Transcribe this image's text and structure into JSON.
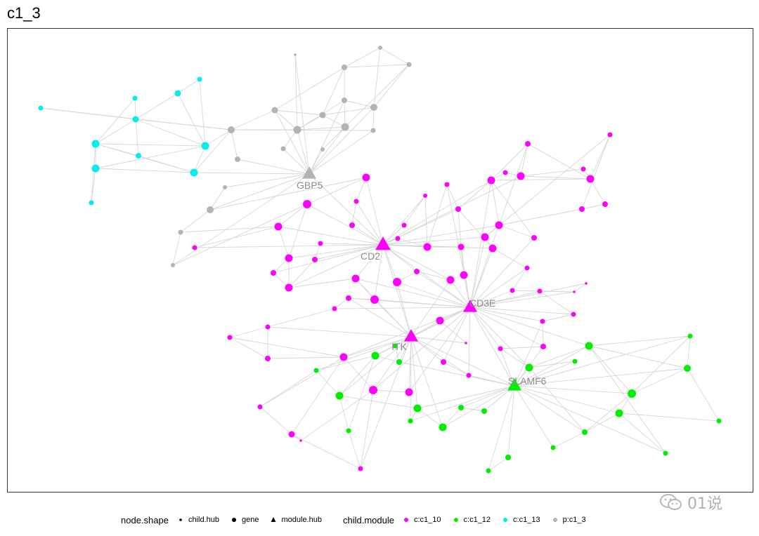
{
  "title": "c1_3",
  "chart_data": {
    "type": "network",
    "title": "c1_3",
    "legend": {
      "shape_title": "node.shape",
      "shape_items": [
        {
          "label": "child.hub",
          "shape": "small-dot"
        },
        {
          "label": "gene",
          "shape": "dot"
        },
        {
          "label": "module.hub",
          "shape": "triangle"
        }
      ],
      "module_title": "child.module",
      "module_items": [
        {
          "label": "c:c1_10",
          "color": "#FF00FF"
        },
        {
          "label": "c:c1_12",
          "color": "#00EE00"
        },
        {
          "label": "c:c1_13",
          "color": "#00EEEE"
        },
        {
          "label": "p:c1_3",
          "color": "#B3B3B3"
        }
      ]
    },
    "labeled_nodes": [
      {
        "id": "GBP5",
        "label": "GBP5",
        "module": "p:c1_3",
        "shape": "module.hub"
      },
      {
        "id": "CD2",
        "label": "CD2",
        "module": "c:c1_10",
        "shape": "module.hub"
      },
      {
        "id": "CD3E",
        "label": "CD3E",
        "module": "c:c1_10",
        "shape": "module.hub"
      },
      {
        "id": "ITK",
        "label": "ITK",
        "module": "c:c1_10",
        "shape": "module.hub"
      },
      {
        "id": "SLAMF6",
        "label": "SLAMF6",
        "module": "c:c1_12",
        "shape": "module.hub"
      }
    ],
    "legend_position": "bottom",
    "grid": false
  },
  "watermark": "01说"
}
